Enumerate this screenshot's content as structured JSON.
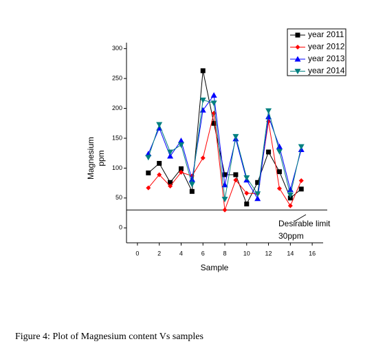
{
  "chart_data": {
    "type": "line",
    "caption": "Figure 4: Plot of Magnesium  content Vs samples",
    "x_label": "Sample",
    "y_label": [
      "Magnesium",
      "ppm"
    ],
    "x": [
      1,
      2,
      3,
      4,
      5,
      6,
      7,
      8,
      9,
      10,
      11,
      12,
      13,
      14,
      15
    ],
    "series": [
      {
        "name": "year 2011",
        "color": "#000000",
        "marker": "square",
        "values": [
          92,
          108,
          76,
          99,
          61,
          263,
          175,
          89,
          89,
          40,
          76,
          127,
          94,
          50,
          65
        ]
      },
      {
        "name": "year 2012",
        "color": "#ff0000",
        "marker": "diamond",
        "values": [
          67,
          89,
          70,
          93,
          87,
          117,
          192,
          30,
          80,
          58,
          57,
          178,
          66,
          37,
          79
        ]
      },
      {
        "name": "year 2013",
        "color": "#0000ff",
        "marker": "triangle-up",
        "values": [
          124,
          167,
          120,
          146,
          81,
          197,
          222,
          72,
          149,
          80,
          49,
          186,
          136,
          64,
          131
        ]
      },
      {
        "name": "year 2014",
        "color": "#008080",
        "marker": "triangle-down",
        "values": [
          118,
          173,
          127,
          139,
          73,
          214,
          209,
          48,
          153,
          84,
          57,
          196,
          128,
          55,
          136
        ]
      }
    ],
    "xlim": [
      -1,
      17
    ],
    "xticks": [
      0,
      2,
      4,
      6,
      8,
      10,
      12,
      14,
      16
    ],
    "ylim": [
      -25,
      310
    ],
    "yticks": [
      0,
      50,
      100,
      150,
      200,
      250,
      300
    ],
    "limit_line": 30,
    "annotations": [
      "Desirable limit",
      "30ppm"
    ],
    "legend": "upper right"
  }
}
